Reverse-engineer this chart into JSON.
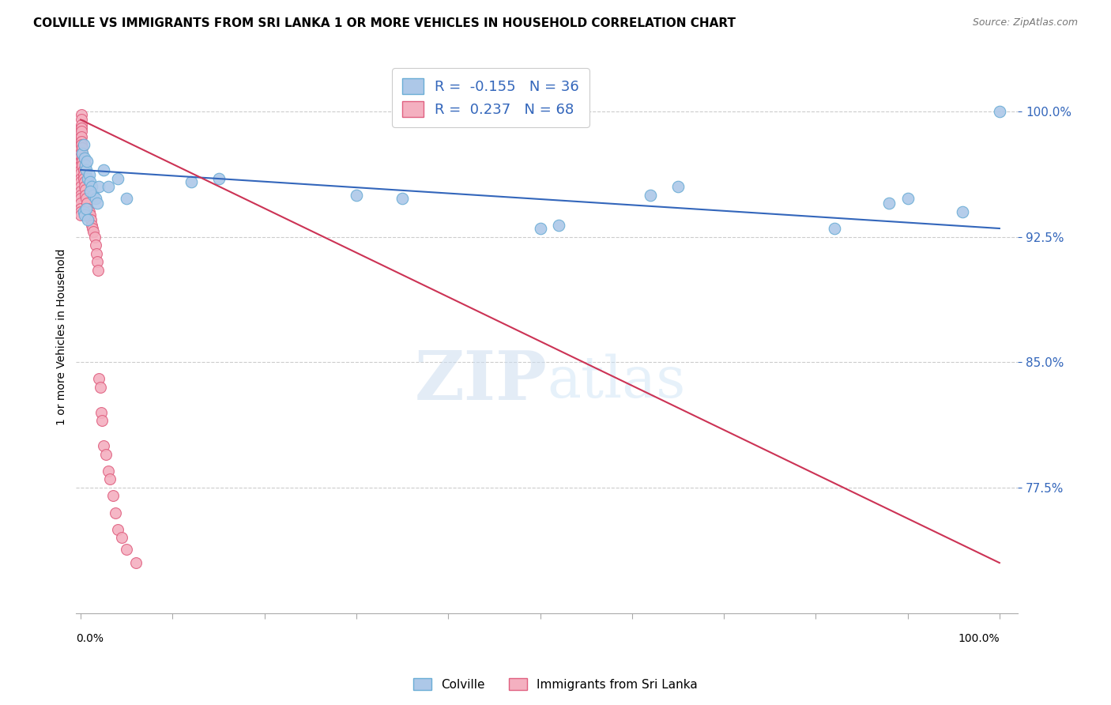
{
  "title": "COLVILLE VS IMMIGRANTS FROM SRI LANKA 1 OR MORE VEHICLES IN HOUSEHOLD CORRELATION CHART",
  "source": "Source: ZipAtlas.com",
  "ylabel": "1 or more Vehicles in Household",
  "ytick_labels": [
    "77.5%",
    "85.0%",
    "92.5%",
    "100.0%"
  ],
  "ytick_values": [
    0.775,
    0.85,
    0.925,
    1.0
  ],
  "colville_R": -0.155,
  "colville_N": 36,
  "srilanka_R": 0.237,
  "srilanka_N": 68,
  "colville_color": "#adc8e8",
  "colville_edge": "#6aadd5",
  "srilanka_color": "#f4b0c0",
  "srilanka_edge": "#e06080",
  "trend_blue": "#3366bb",
  "trend_pink": "#cc3355",
  "colville_x": [
    0.002,
    0.003,
    0.004,
    0.005,
    0.006,
    0.007,
    0.008,
    0.009,
    0.01,
    0.012,
    0.014,
    0.016,
    0.018,
    0.02,
    0.025,
    0.03,
    0.04,
    0.05,
    0.12,
    0.15,
    0.3,
    0.35,
    0.5,
    0.52,
    0.62,
    0.65,
    0.82,
    0.88,
    0.9,
    0.96,
    1.0,
    0.003,
    0.004,
    0.006,
    0.008,
    0.01
  ],
  "colville_y": [
    0.975,
    0.98,
    0.972,
    0.968,
    0.965,
    0.97,
    0.96,
    0.962,
    0.958,
    0.955,
    0.95,
    0.948,
    0.945,
    0.955,
    0.965,
    0.955,
    0.96,
    0.948,
    0.958,
    0.96,
    0.95,
    0.948,
    0.93,
    0.932,
    0.95,
    0.955,
    0.93,
    0.945,
    0.948,
    0.94,
    1.0,
    0.94,
    0.938,
    0.942,
    0.935,
    0.952
  ],
  "srilanka_x": [
    0.0,
    0.0,
    0.0,
    0.0,
    0.0,
    0.0,
    0.0,
    0.0,
    0.0,
    0.0,
    0.0,
    0.0,
    0.0,
    0.0,
    0.0,
    0.0,
    0.0,
    0.0,
    0.0,
    0.0,
    0.001,
    0.001,
    0.001,
    0.001,
    0.001,
    0.001,
    0.001,
    0.001,
    0.002,
    0.002,
    0.002,
    0.002,
    0.002,
    0.003,
    0.003,
    0.003,
    0.004,
    0.004,
    0.005,
    0.005,
    0.006,
    0.007,
    0.008,
    0.009,
    0.01,
    0.011,
    0.012,
    0.013,
    0.014,
    0.015,
    0.016,
    0.017,
    0.018,
    0.019,
    0.02,
    0.021,
    0.022,
    0.023,
    0.025,
    0.027,
    0.03,
    0.032,
    0.035,
    0.038,
    0.04,
    0.045,
    0.05,
    0.06
  ],
  "srilanka_y": [
    0.99,
    0.985,
    0.98,
    0.978,
    0.975,
    0.973,
    0.97,
    0.968,
    0.965,
    0.963,
    0.96,
    0.958,
    0.955,
    0.952,
    0.95,
    0.948,
    0.945,
    0.942,
    0.94,
    0.938,
    0.998,
    0.995,
    0.992,
    0.99,
    0.988,
    0.985,
    0.982,
    0.98,
    0.978,
    0.975,
    0.972,
    0.97,
    0.968,
    0.965,
    0.962,
    0.96,
    0.958,
    0.955,
    0.953,
    0.95,
    0.948,
    0.945,
    0.942,
    0.94,
    0.938,
    0.935,
    0.932,
    0.93,
    0.928,
    0.925,
    0.92,
    0.915,
    0.91,
    0.905,
    0.84,
    0.835,
    0.82,
    0.815,
    0.8,
    0.795,
    0.785,
    0.78,
    0.77,
    0.76,
    0.75,
    0.745,
    0.738,
    0.73
  ],
  "watermark_zip": "ZIP",
  "watermark_atlas": "atlas",
  "background_color": "#ffffff",
  "grid_color": "#cccccc",
  "xlim": [
    -0.005,
    1.02
  ],
  "ylim": [
    0.7,
    1.03
  ],
  "blue_trend_start_y": 0.965,
  "blue_trend_end_y": 0.93,
  "pink_trend_start_y": 0.995,
  "pink_trend_end_y": 0.73
}
